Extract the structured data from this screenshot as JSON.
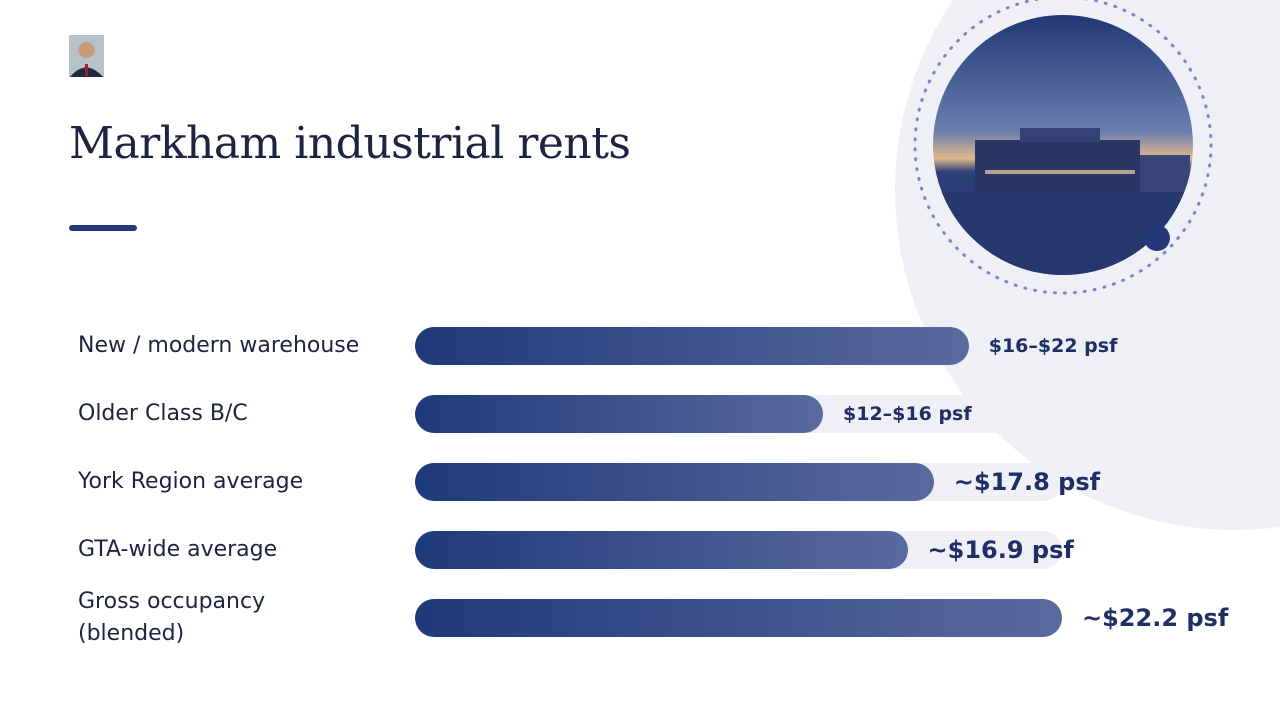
{
  "chart_data": {
    "type": "bar",
    "orientation": "horizontal",
    "title": "Markham industrial rents",
    "categories": [
      "New / modern warehouse",
      "Older Class B/C",
      "York Region average",
      "GTA-wide average",
      "Gross occupancy (blended)"
    ],
    "values": [
      19,
      14,
      17.8,
      16.9,
      22.2
    ],
    "value_labels": [
      "$16–$22 psf",
      "$12–$16 psf",
      "~$17.8 psf",
      "~$16.9 psf",
      "~$22.2 psf"
    ],
    "xlim": [
      0,
      22.2
    ],
    "color": "#1f3a7a"
  }
}
